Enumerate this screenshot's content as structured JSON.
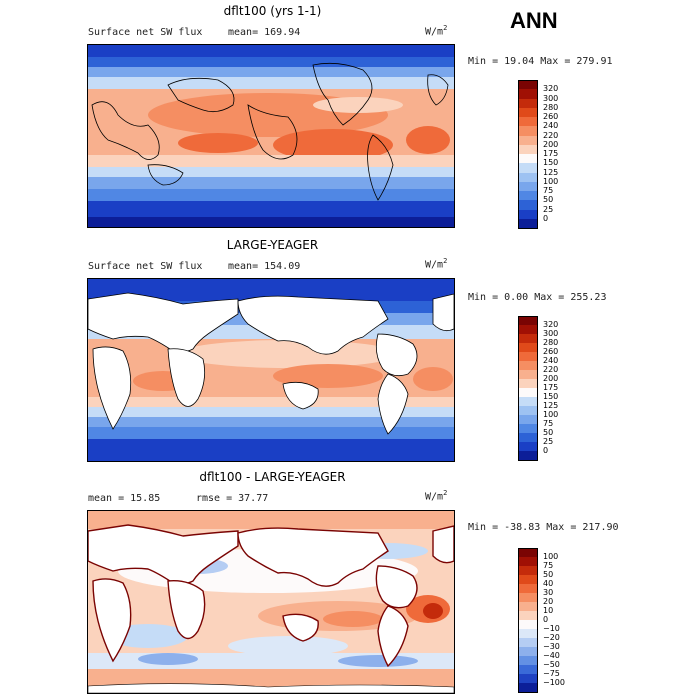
{
  "season": "ANN",
  "panels": [
    {
      "id": "top",
      "title": "dflt100 (yrs 1-1)",
      "left_label": "Surface net SW flux",
      "mid_label": "mean= 169.94",
      "units": "W/m",
      "units_sup": "2",
      "minmax": "Min =  19.04 Max = 279.91",
      "colorbar_ticks": [
        "320",
        "300",
        "280",
        "260",
        "240",
        "220",
        "200",
        "175",
        "150",
        "125",
        "100",
        "75",
        "50",
        "25",
        "0"
      ],
      "colors": [
        "#7a0403",
        "#a01004",
        "#c42b0b",
        "#e04a1a",
        "#ef6a3a",
        "#f58e62",
        "#f8b08e",
        "#fbd3bd",
        "#fdfafa",
        "#c5dcf7",
        "#9ec2f2",
        "#79a6ec",
        "#5087e4",
        "#2d62d6",
        "#1a3fc5",
        "#0c1e98"
      ]
    },
    {
      "id": "middle",
      "title": "LARGE-YEAGER",
      "left_label": "Surface net SW flux",
      "mid_label": "mean= 154.09",
      "units": "W/m",
      "units_sup": "2",
      "minmax": "Min =   0.00 Max = 255.23",
      "colorbar_ticks": [
        "320",
        "300",
        "280",
        "260",
        "240",
        "220",
        "200",
        "175",
        "150",
        "125",
        "100",
        "75",
        "50",
        "25",
        "0"
      ],
      "colors": [
        "#7a0403",
        "#a01004",
        "#c42b0b",
        "#e04a1a",
        "#ef6a3a",
        "#f58e62",
        "#f8b08e",
        "#fbd3bd",
        "#fdfafa",
        "#c5dcf7",
        "#9ec2f2",
        "#79a6ec",
        "#5087e4",
        "#2d62d6",
        "#1a3fc5",
        "#0c1e98"
      ]
    },
    {
      "id": "bottom",
      "title": "dflt100 - LARGE-YEAGER",
      "left_label": "mean =  15.85",
      "mid_label": "rmse =  37.77",
      "units": "W/m",
      "units_sup": "2",
      "minmax": "Min = -38.83 Max = 217.90",
      "colorbar_ticks": [
        "100",
        "75",
        "50",
        "40",
        "30",
        "20",
        "10",
        "0",
        "−10",
        "−20",
        "−30",
        "−40",
        "−50",
        "−75",
        "−100"
      ],
      "colors": [
        "#7a0403",
        "#a01004",
        "#c42b0b",
        "#e04a1a",
        "#ef6a3a",
        "#f58e62",
        "#f8b08e",
        "#fbd3bd",
        "#fdfafa",
        "#dce8f8",
        "#b5cdf3",
        "#8db0ec",
        "#6391e4",
        "#3a6ad8",
        "#1f42c2",
        "#0c1e98"
      ]
    }
  ]
}
